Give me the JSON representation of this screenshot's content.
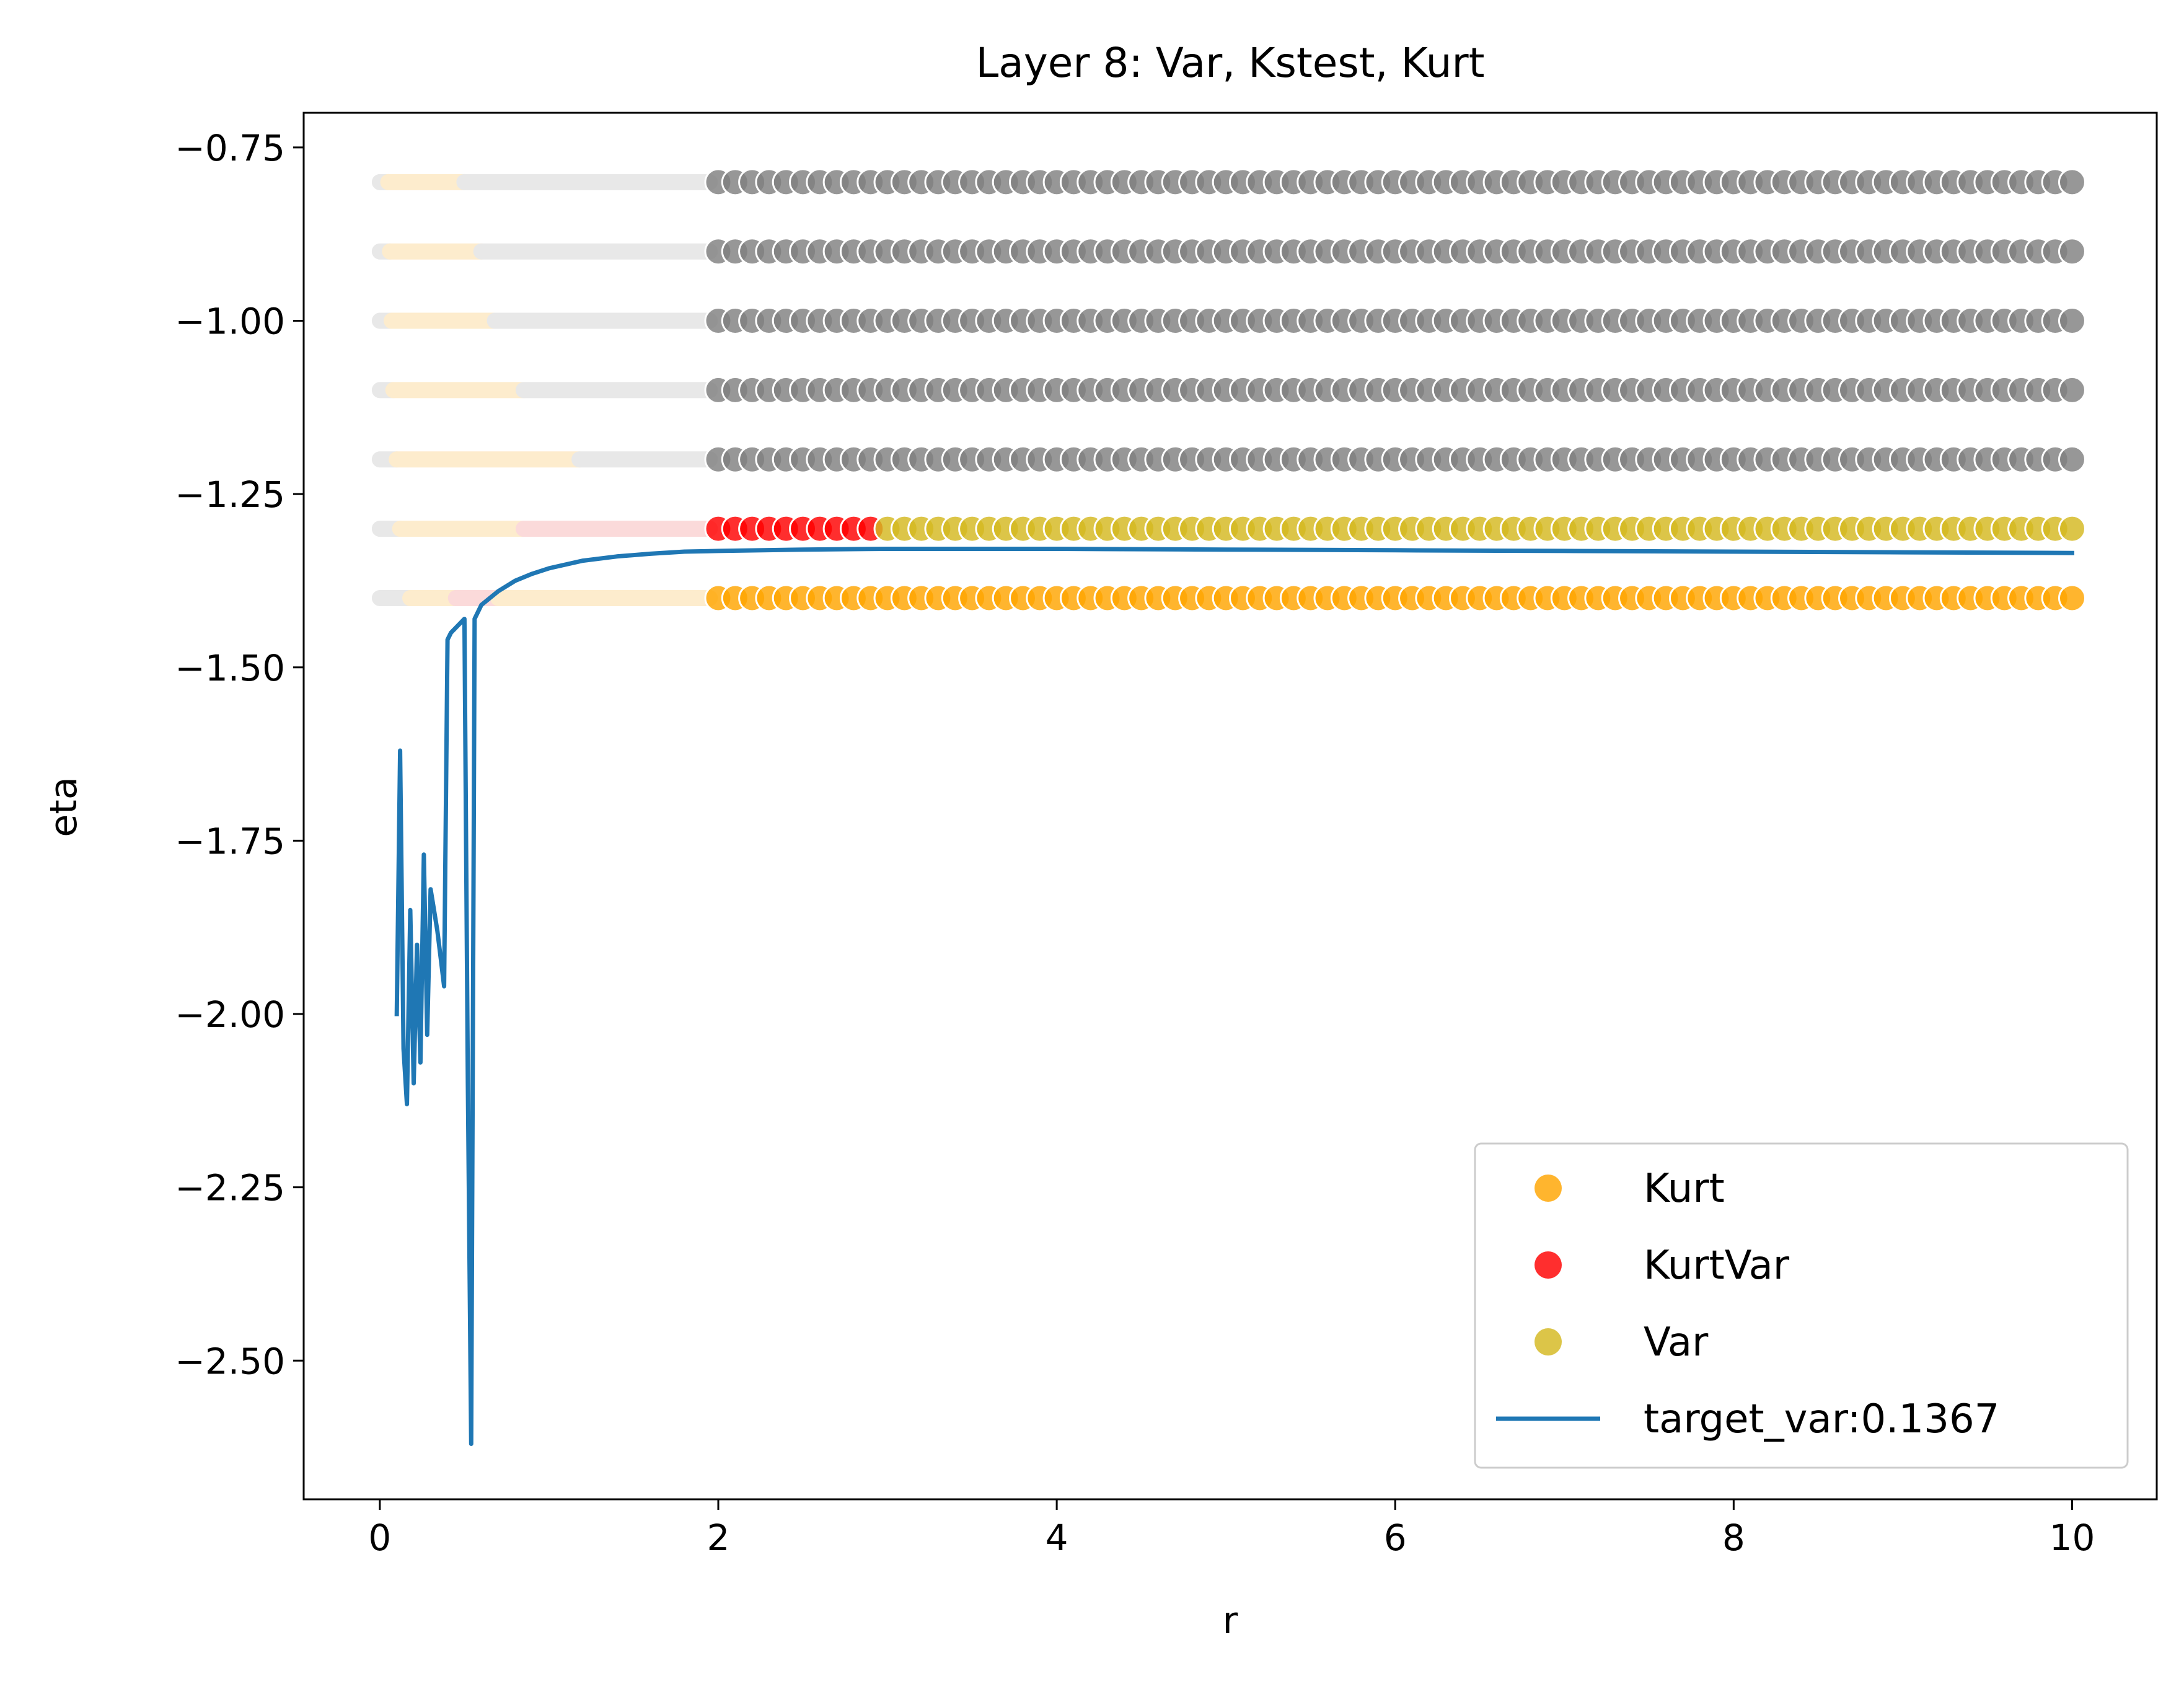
{
  "chart_data": {
    "type": "scatter",
    "title": "Layer 8: Var, Kstest, Kurt",
    "xlabel": "r",
    "ylabel": "eta",
    "xlim": [
      -0.45,
      10.5
    ],
    "ylim": [
      -2.7,
      -0.7
    ],
    "xticks": [
      0,
      2,
      4,
      6,
      8,
      10
    ],
    "xtick_labels": [
      "0",
      "2",
      "4",
      "6",
      "8",
      "10"
    ],
    "yticks": [
      -0.75,
      -1.0,
      -1.25,
      -1.5,
      -1.75,
      -2.0,
      -2.25,
      -2.5
    ],
    "ytick_labels": [
      "−0.75",
      "−1.00",
      "−1.25",
      "−1.50",
      "−1.75",
      "−2.00",
      "−2.25",
      "−2.50"
    ],
    "grid": false,
    "legend_position": "lower-right",
    "colors": {
      "Kurt": "#ffa500",
      "KurtVar": "#ff0000",
      "Var": "#d4b820",
      "none": "#808080",
      "target_var": "#1f77b4",
      "faint_none": "#e8e8e8",
      "faint_kurt": "#fdeccd",
      "faint_kurtvar": "#fbdada"
    },
    "legend": [
      {
        "label": "Kurt",
        "marker": "dot",
        "color": "#ffa500"
      },
      {
        "label": "KurtVar",
        "marker": "dot",
        "color": "#ff0000"
      },
      {
        "label": "Var",
        "marker": "dot",
        "color": "#d4b820"
      },
      {
        "label": "target_var:0.1367",
        "marker": "line",
        "color": "#1f77b4"
      }
    ],
    "point_grid": {
      "r_start": 2.0,
      "r_end": 10.0,
      "r_step": 0.1
    },
    "point_rows": [
      {
        "eta": -0.8,
        "segments": [
          {
            "category": "none",
            "r_from": 2.0,
            "r_to": 10.0
          }
        ]
      },
      {
        "eta": -0.9,
        "segments": [
          {
            "category": "none",
            "r_from": 2.0,
            "r_to": 10.0
          }
        ]
      },
      {
        "eta": -1.0,
        "segments": [
          {
            "category": "none",
            "r_from": 2.0,
            "r_to": 10.0
          }
        ]
      },
      {
        "eta": -1.1,
        "segments": [
          {
            "category": "none",
            "r_from": 2.0,
            "r_to": 10.0
          }
        ]
      },
      {
        "eta": -1.2,
        "segments": [
          {
            "category": "none",
            "r_from": 2.0,
            "r_to": 10.0
          }
        ]
      },
      {
        "eta": -1.3,
        "segments": [
          {
            "category": "KurtVar",
            "r_from": 2.0,
            "r_to": 2.9
          },
          {
            "category": "Var",
            "r_from": 3.0,
            "r_to": 10.0
          }
        ]
      },
      {
        "eta": -1.4,
        "segments": [
          {
            "category": "Kurt",
            "r_from": 2.0,
            "r_to": 10.0
          }
        ]
      }
    ],
    "faint_bands": [
      {
        "eta": -0.8,
        "segments": [
          {
            "category": "faint_none",
            "r_from": 0.0,
            "r_to": 0.05
          },
          {
            "category": "faint_kurt",
            "r_from": 0.05,
            "r_to": 0.5
          },
          {
            "category": "faint_none",
            "r_from": 0.5,
            "r_to": 1.95
          }
        ]
      },
      {
        "eta": -0.9,
        "segments": [
          {
            "category": "faint_none",
            "r_from": 0.0,
            "r_to": 0.06
          },
          {
            "category": "faint_kurt",
            "r_from": 0.06,
            "r_to": 0.6
          },
          {
            "category": "faint_none",
            "r_from": 0.6,
            "r_to": 1.95
          }
        ]
      },
      {
        "eta": -1.0,
        "segments": [
          {
            "category": "faint_none",
            "r_from": 0.0,
            "r_to": 0.07
          },
          {
            "category": "faint_kurt",
            "r_from": 0.07,
            "r_to": 0.68
          },
          {
            "category": "faint_none",
            "r_from": 0.68,
            "r_to": 1.95
          }
        ]
      },
      {
        "eta": -1.1,
        "segments": [
          {
            "category": "faint_none",
            "r_from": 0.0,
            "r_to": 0.08
          },
          {
            "category": "faint_kurt",
            "r_from": 0.08,
            "r_to": 0.85
          },
          {
            "category": "faint_none",
            "r_from": 0.85,
            "r_to": 1.95
          }
        ]
      },
      {
        "eta": -1.2,
        "segments": [
          {
            "category": "faint_none",
            "r_from": 0.0,
            "r_to": 0.1
          },
          {
            "category": "faint_kurt",
            "r_from": 0.1,
            "r_to": 1.18
          },
          {
            "category": "faint_none",
            "r_from": 1.18,
            "r_to": 1.95
          }
        ]
      },
      {
        "eta": -1.3,
        "segments": [
          {
            "category": "faint_none",
            "r_from": 0.0,
            "r_to": 0.12
          },
          {
            "category": "faint_kurt",
            "r_from": 0.12,
            "r_to": 0.85
          },
          {
            "category": "faint_kurtvar",
            "r_from": 0.85,
            "r_to": 1.95
          }
        ]
      },
      {
        "eta": -1.4,
        "segments": [
          {
            "category": "faint_none",
            "r_from": 0.0,
            "r_to": 0.18
          },
          {
            "category": "faint_kurt",
            "r_from": 0.18,
            "r_to": 0.45
          },
          {
            "category": "faint_kurtvar",
            "r_from": 0.45,
            "r_to": 0.7
          },
          {
            "category": "faint_kurt",
            "r_from": 0.7,
            "r_to": 1.95
          }
        ]
      }
    ],
    "series": [
      {
        "name": "target_var:0.1367",
        "x": [
          0.1,
          0.12,
          0.14,
          0.16,
          0.18,
          0.2,
          0.22,
          0.24,
          0.26,
          0.28,
          0.3,
          0.32,
          0.34,
          0.36,
          0.38,
          0.4,
          0.42,
          0.46,
          0.5,
          0.52,
          0.54,
          0.56,
          0.6,
          0.7,
          0.8,
          0.9,
          1.0,
          1.2,
          1.4,
          1.6,
          1.8,
          2.0,
          2.5,
          3.0,
          3.5,
          4.0,
          5.0,
          6.0,
          7.0,
          8.0,
          9.0,
          10.0
        ],
        "y": [
          -2.0,
          -1.62,
          -2.05,
          -2.13,
          -1.85,
          -2.1,
          -1.9,
          -2.07,
          -1.77,
          -2.03,
          -1.82,
          -1.85,
          -1.88,
          -1.92,
          -1.96,
          -1.46,
          -1.45,
          -1.44,
          -1.43,
          -2.1,
          -2.62,
          -1.43,
          -1.41,
          -1.39,
          -1.375,
          -1.365,
          -1.357,
          -1.346,
          -1.34,
          -1.336,
          -1.333,
          -1.332,
          -1.33,
          -1.329,
          -1.329,
          -1.329,
          -1.33,
          -1.331,
          -1.332,
          -1.333,
          -1.334,
          -1.335
        ]
      }
    ]
  }
}
